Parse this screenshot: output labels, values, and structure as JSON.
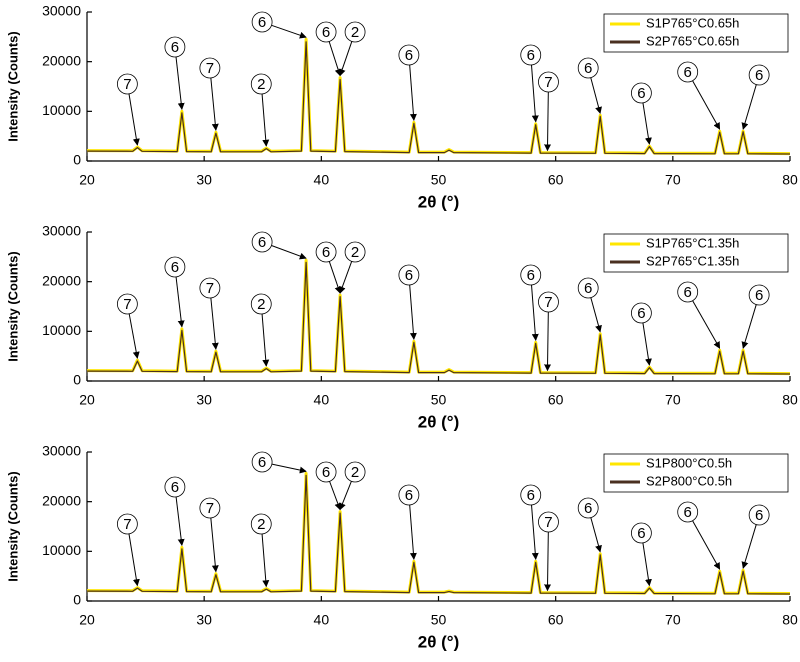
{
  "chart_data": [
    {
      "type": "line",
      "xlabel": "2θ (°)",
      "ylabel": "Intensity (Counts)",
      "xlim": [
        20,
        80
      ],
      "ylim": [
        0,
        30000
      ],
      "xticks": [
        20,
        30,
        40,
        50,
        60,
        70,
        80
      ],
      "yticks": [
        0,
        10000,
        20000,
        30000
      ],
      "legend": "upper right",
      "x": [
        20,
        23.9,
        24.3,
        24.7,
        27.7,
        28.1,
        28.5,
        30.6,
        31.0,
        31.4,
        34.9,
        35.3,
        35.7,
        38.3,
        38.7,
        39.1,
        41.2,
        41.6,
        42.0,
        47.5,
        47.9,
        48.3,
        50.5,
        50.9,
        51.3,
        57.9,
        58.3,
        58.7,
        63.4,
        63.8,
        64.2,
        67.6,
        68.0,
        68.4,
        73.6,
        74.0,
        74.4,
        75.6,
        76.0,
        76.4,
        80
      ],
      "series": [
        {
          "name": "S1P765°C0.65h",
          "color": "#ffe600",
          "values": [
            2100,
            2050,
            2800,
            2050,
            2000,
            10000,
            2000,
            1950,
            5800,
            1950,
            1950,
            2600,
            1950,
            2100,
            24500,
            2100,
            2000,
            16800,
            2000,
            1800,
            7800,
            1800,
            1800,
            2300,
            1800,
            1700,
            7500,
            1700,
            1650,
            9200,
            1650,
            1600,
            3000,
            1600,
            1550,
            6000,
            1550,
            1550,
            6000,
            1550,
            1500
          ]
        },
        {
          "name": "S2P765°C0.65h",
          "color": "#4a3020",
          "values": [
            2000,
            1950,
            2700,
            1950,
            1900,
            9700,
            1900,
            1850,
            5600,
            1850,
            1850,
            2500,
            1850,
            2000,
            24000,
            2000,
            1900,
            16400,
            1900,
            1700,
            7600,
            1700,
            1700,
            2200,
            1700,
            1600,
            7300,
            1600,
            1550,
            9000,
            1550,
            1500,
            2900,
            1500,
            1450,
            5800,
            1450,
            1450,
            5900,
            1450,
            1400
          ]
        }
      ],
      "annotations": [
        {
          "text": "7",
          "x": 24.3
        },
        {
          "text": "6",
          "x": 28.1
        },
        {
          "text": "7",
          "x": 31.0
        },
        {
          "text": "2",
          "x": 35.3
        },
        {
          "text": "6",
          "x": 38.7
        },
        {
          "text": "6",
          "x": 41.6
        },
        {
          "text": "2",
          "x": 41.6
        },
        {
          "text": "6",
          "x": 47.9
        },
        {
          "text": "6",
          "x": 58.3
        },
        {
          "text": "7",
          "x": 59.3
        },
        {
          "text": "6",
          "x": 63.8
        },
        {
          "text": "6",
          "x": 68.0
        },
        {
          "text": "6",
          "x": 74.0
        },
        {
          "text": "6",
          "x": 76.0
        }
      ]
    },
    {
      "type": "line",
      "xlabel": "2θ (°)",
      "ylabel": "Intensity (Counts)",
      "xlim": [
        20,
        80
      ],
      "ylim": [
        0,
        30000
      ],
      "xticks": [
        20,
        30,
        40,
        50,
        60,
        70,
        80
      ],
      "yticks": [
        0,
        10000,
        20000,
        30000
      ],
      "legend": "upper right",
      "x": [
        20,
        23.9,
        24.3,
        24.7,
        27.7,
        28.1,
        28.5,
        30.6,
        31.0,
        31.4,
        34.9,
        35.3,
        35.7,
        38.3,
        38.7,
        39.1,
        41.2,
        41.6,
        42.0,
        47.5,
        47.9,
        48.3,
        50.5,
        50.9,
        51.3,
        57.9,
        58.3,
        58.7,
        63.4,
        63.8,
        64.2,
        67.6,
        68.0,
        68.4,
        73.6,
        74.0,
        74.4,
        75.6,
        76.0,
        76.4,
        80
      ],
      "series": [
        {
          "name": "S1P765°C1.35h",
          "color": "#ffe600",
          "values": [
            2100,
            2050,
            4200,
            2050,
            2000,
            10500,
            2000,
            1950,
            6000,
            1950,
            1950,
            2600,
            1950,
            2100,
            24300,
            2100,
            2000,
            17300,
            2000,
            1800,
            8000,
            1800,
            1800,
            2300,
            1800,
            1700,
            7800,
            1700,
            1650,
            9500,
            1650,
            1600,
            2800,
            1600,
            1550,
            6200,
            1550,
            1550,
            6200,
            1550,
            1500
          ]
        },
        {
          "name": "S2P765°C1.35h",
          "color": "#4a3020",
          "values": [
            2000,
            1950,
            4000,
            1950,
            1900,
            10200,
            1900,
            1850,
            5800,
            1850,
            1850,
            2500,
            1850,
            2000,
            23900,
            2000,
            1900,
            17000,
            1900,
            1700,
            7800,
            1700,
            1700,
            2200,
            1700,
            1600,
            7600,
            1600,
            1550,
            9300,
            1550,
            1500,
            2700,
            1500,
            1450,
            6000,
            1450,
            1450,
            6000,
            1450,
            1400
          ]
        }
      ],
      "annotations": [
        {
          "text": "7",
          "x": 24.3
        },
        {
          "text": "6",
          "x": 28.1
        },
        {
          "text": "7",
          "x": 31.0
        },
        {
          "text": "2",
          "x": 35.3
        },
        {
          "text": "6",
          "x": 38.7
        },
        {
          "text": "6",
          "x": 41.6
        },
        {
          "text": "2",
          "x": 41.6
        },
        {
          "text": "6",
          "x": 47.9
        },
        {
          "text": "6",
          "x": 58.3
        },
        {
          "text": "7",
          "x": 59.3
        },
        {
          "text": "6",
          "x": 63.8
        },
        {
          "text": "6",
          "x": 68.0
        },
        {
          "text": "6",
          "x": 74.0
        },
        {
          "text": "6",
          "x": 76.0
        }
      ]
    },
    {
      "type": "line",
      "xlabel": "2θ (°)",
      "ylabel": "Intensity (Counts)",
      "xlim": [
        20,
        80
      ],
      "ylim": [
        0,
        30000
      ],
      "xticks": [
        20,
        30,
        40,
        50,
        60,
        70,
        80
      ],
      "yticks": [
        0,
        10000,
        20000,
        30000
      ],
      "legend": "upper right",
      "x": [
        20,
        23.9,
        24.3,
        24.7,
        27.7,
        28.1,
        28.5,
        30.6,
        31.0,
        31.4,
        34.9,
        35.3,
        35.7,
        38.3,
        38.7,
        39.1,
        41.2,
        41.6,
        42.0,
        47.5,
        47.9,
        48.3,
        50.5,
        50.9,
        51.3,
        57.9,
        58.3,
        58.7,
        63.4,
        63.8,
        64.2,
        67.6,
        68.0,
        68.4,
        73.6,
        74.0,
        74.4,
        75.6,
        76.0,
        76.4,
        80
      ],
      "series": [
        {
          "name": "S1P800°C0.5h",
          "color": "#ffe600",
          "values": [
            2100,
            2050,
            2700,
            2050,
            2000,
            10800,
            2000,
            1950,
            5500,
            1950,
            1950,
            2500,
            1950,
            2100,
            25700,
            2100,
            2000,
            18000,
            2000,
            1800,
            8000,
            1800,
            1800,
            2000,
            1800,
            1700,
            8000,
            1700,
            1650,
            9500,
            1650,
            1600,
            2700,
            1600,
            1550,
            6000,
            1550,
            1550,
            6200,
            1550,
            1500
          ]
        },
        {
          "name": "S2P800°C0.5h",
          "color": "#4a3020",
          "values": [
            2000,
            1950,
            2600,
            1950,
            1900,
            10500,
            1900,
            1850,
            5300,
            1850,
            1850,
            2400,
            1850,
            2000,
            25300,
            2000,
            1900,
            17700,
            1900,
            1700,
            7800,
            1700,
            1700,
            1900,
            1700,
            1600,
            7800,
            1600,
            1550,
            9300,
            1550,
            1500,
            2600,
            1500,
            1450,
            5800,
            1450,
            1450,
            6000,
            1450,
            1400
          ]
        }
      ],
      "annotations": [
        {
          "text": "7",
          "x": 24.3
        },
        {
          "text": "6",
          "x": 28.1
        },
        {
          "text": "7",
          "x": 31.0
        },
        {
          "text": "2",
          "x": 35.3
        },
        {
          "text": "6",
          "x": 38.7
        },
        {
          "text": "6",
          "x": 41.6
        },
        {
          "text": "2",
          "x": 41.6
        },
        {
          "text": "6",
          "x": 47.9
        },
        {
          "text": "6",
          "x": 58.3
        },
        {
          "text": "7",
          "x": 59.3
        },
        {
          "text": "6",
          "x": 63.8
        },
        {
          "text": "6",
          "x": 68.0
        },
        {
          "text": "6",
          "x": 74.0
        },
        {
          "text": "6",
          "x": 76.0
        }
      ]
    }
  ]
}
